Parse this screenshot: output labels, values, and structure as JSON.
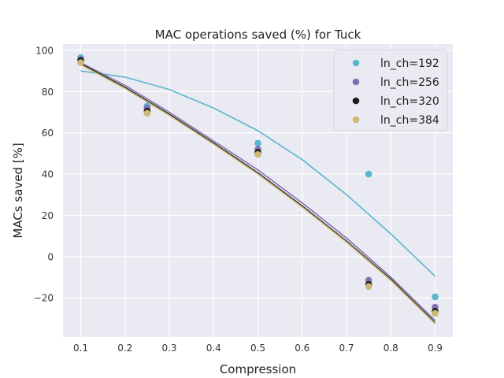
{
  "chart_data": {
    "type": "scatter",
    "title": "MAC operations saved (%) for Tuck",
    "xlabel": "Compression",
    "ylabel": "MACs saved [%]",
    "xlim": [
      0.06,
      0.94
    ],
    "ylim": [
      -39,
      103
    ],
    "xticks": [
      "0.1",
      "0.2",
      "0.3",
      "0.4",
      "0.5",
      "0.6",
      "0.7",
      "0.8",
      "0.9"
    ],
    "xtick_values": [
      0.1,
      0.2,
      0.3,
      0.4,
      0.5,
      0.6,
      0.7,
      0.8,
      0.9
    ],
    "yticks": [
      "−20",
      "0",
      "20",
      "40",
      "60",
      "80",
      "100"
    ],
    "ytick_values": [
      -20,
      0,
      20,
      40,
      60,
      80,
      100
    ],
    "grid": true,
    "legend_position": "top-right",
    "series": [
      {
        "name": "ln_ch=192",
        "color": "#5bb5cc",
        "points": [
          [
            0.1,
            96.5
          ],
          [
            0.25,
            73
          ],
          [
            0.5,
            55
          ],
          [
            0.75,
            40
          ],
          [
            0.9,
            -19.5
          ]
        ],
        "fit": [
          [
            0.1,
            90
          ],
          [
            0.2,
            87
          ],
          [
            0.3,
            81
          ],
          [
            0.4,
            72
          ],
          [
            0.5,
            61
          ],
          [
            0.6,
            47
          ],
          [
            0.7,
            30
          ],
          [
            0.8,
            11
          ],
          [
            0.9,
            -9.5
          ]
        ]
      },
      {
        "name": "ln_ch=256",
        "color": "#8172b3",
        "points": [
          [
            0.1,
            95.5
          ],
          [
            0.25,
            72
          ],
          [
            0.5,
            52
          ],
          [
            0.75,
            -11.5
          ],
          [
            0.9,
            -24.5
          ]
        ],
        "fit": [
          [
            0.1,
            94
          ],
          [
            0.2,
            83
          ],
          [
            0.3,
            70
          ],
          [
            0.4,
            56
          ],
          [
            0.5,
            42
          ],
          [
            0.6,
            26
          ],
          [
            0.7,
            9
          ],
          [
            0.8,
            -10
          ],
          [
            0.9,
            -31
          ]
        ]
      },
      {
        "name": "ln_ch=320",
        "color": "#1c1c1c",
        "points": [
          [
            0.1,
            95
          ],
          [
            0.25,
            70.5
          ],
          [
            0.5,
            50.5
          ],
          [
            0.75,
            -13.5
          ],
          [
            0.9,
            -26.5
          ]
        ],
        "fit": [
          [
            0.1,
            93.5
          ],
          [
            0.2,
            82
          ],
          [
            0.3,
            69
          ],
          [
            0.4,
            55
          ],
          [
            0.5,
            40.5
          ],
          [
            0.6,
            24.5
          ],
          [
            0.7,
            7.5
          ],
          [
            0.8,
            -11
          ],
          [
            0.9,
            -32
          ]
        ]
      },
      {
        "name": "ln_ch=384",
        "color": "#ccb974",
        "points": [
          [
            0.1,
            94
          ],
          [
            0.25,
            69.5
          ],
          [
            0.5,
            49.5
          ],
          [
            0.75,
            -14.5
          ],
          [
            0.9,
            -27.5
          ]
        ],
        "fit": [
          [
            0.1,
            93
          ],
          [
            0.2,
            81.5
          ],
          [
            0.3,
            68.5
          ],
          [
            0.4,
            54.5
          ],
          [
            0.5,
            40
          ],
          [
            0.6,
            24
          ],
          [
            0.7,
            7
          ],
          [
            0.8,
            -11.5
          ],
          [
            0.9,
            -32.5
          ]
        ]
      }
    ]
  }
}
